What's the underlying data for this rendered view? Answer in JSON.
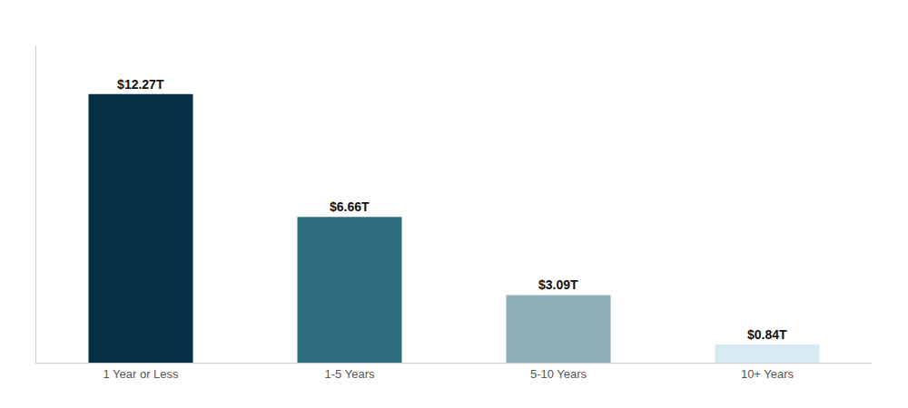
{
  "chart_data": {
    "type": "bar",
    "categories": [
      "1 Year or Less",
      "1-5 Years",
      "5-10 Years",
      "10+ Years"
    ],
    "values": [
      12.27,
      6.66,
      3.09,
      0.84
    ],
    "value_labels": [
      "$12.27T",
      "$6.66T",
      "$3.09T",
      "$0.84T"
    ],
    "colors": [
      "#062f46",
      "#2e6e7e",
      "#8fafbb",
      "#d6eaf2"
    ],
    "ylim": [
      0,
      14.5
    ],
    "grid": false,
    "data_labels": true,
    "tick_labels": "x"
  }
}
